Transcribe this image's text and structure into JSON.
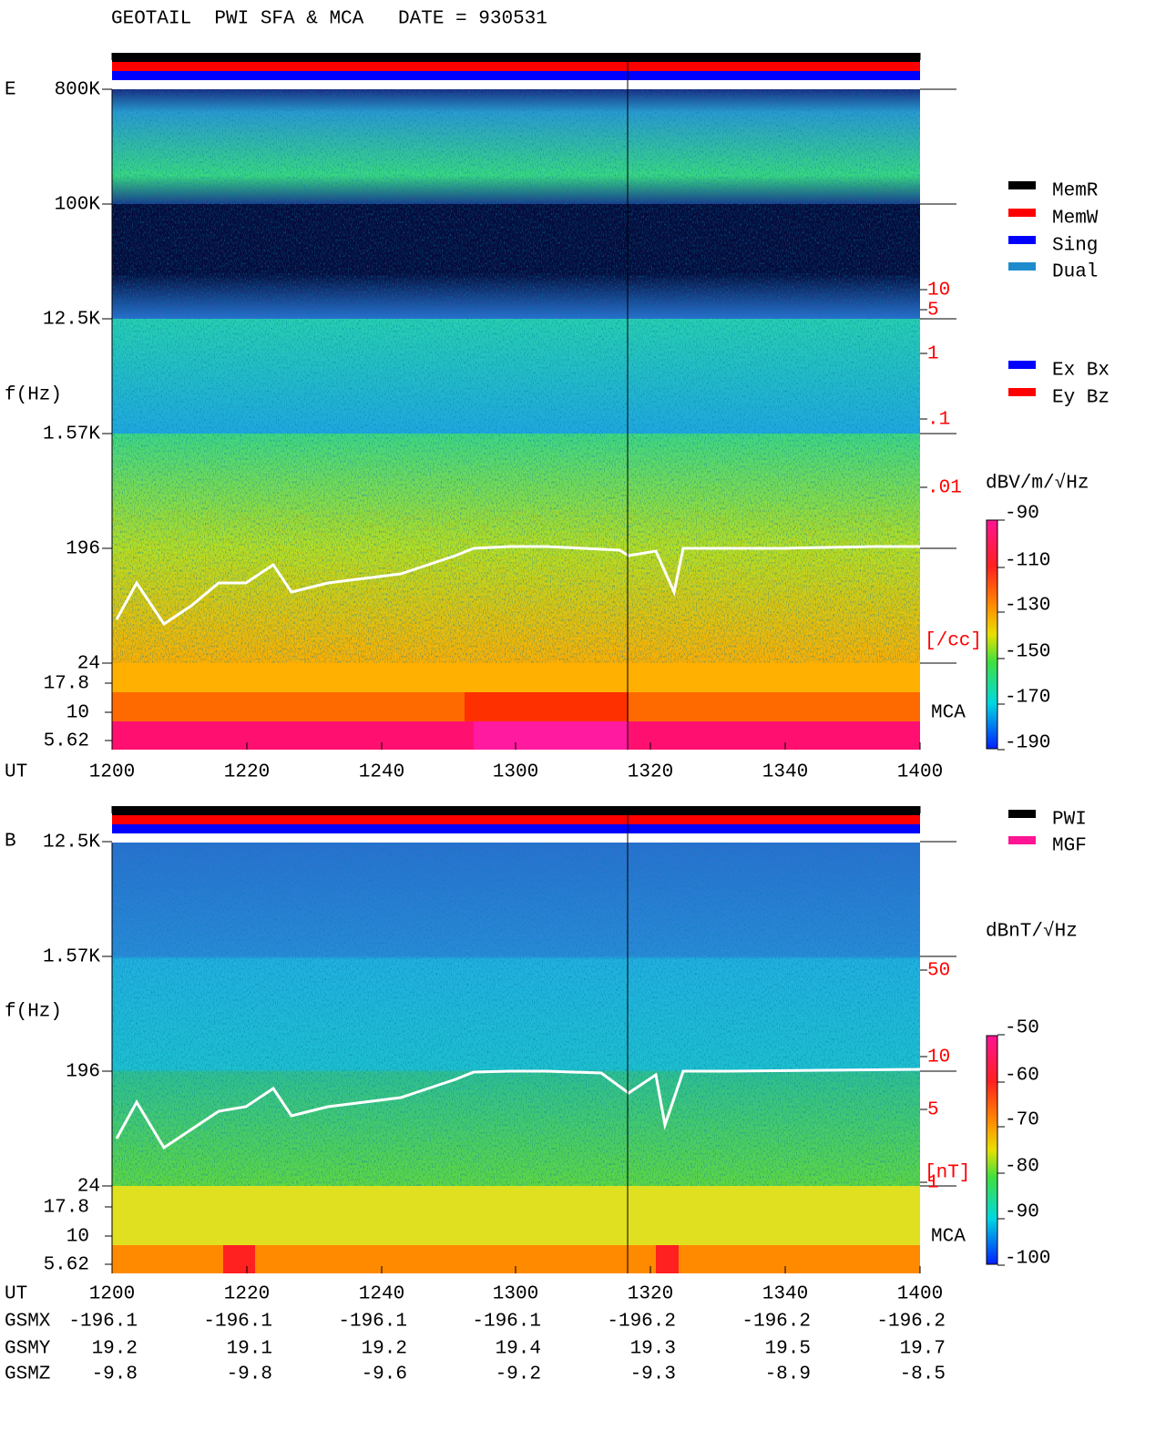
{
  "title": "GEOTAIL  PWI SFA & MCA   DATE = 930531",
  "panels": [
    {
      "label": "E",
      "axis_label": "f(Hz)",
      "freq_ticks": [
        "800K",
        "100K",
        "12.5K",
        "1.57K",
        "196",
        "24"
      ],
      "mca_ticks": [
        "17.8",
        "10",
        "5.62"
      ],
      "time_label": "UT",
      "time_ticks": [
        "1200",
        "1220",
        "1240",
        "1300",
        "1320",
        "1340",
        "1400"
      ],
      "right_scale": [
        "10",
        "5",
        "1",
        ".1",
        ".01"
      ],
      "right_unit": "[/cc]",
      "mca_label": "MCA",
      "legend": [
        {
          "label": "MemR",
          "color": "#000000",
          "text_color": "#000000"
        },
        {
          "label": "MemW",
          "color": "#ff0000",
          "text_color": "#ff0000"
        },
        {
          "label": "Sing",
          "color": "#0000ff",
          "text_color": "#0000ff"
        },
        {
          "label": "Dual",
          "color": "#1e8ccc",
          "text_color": "#1e8ccc"
        }
      ],
      "legend2": [
        {
          "label": "Ex Bx",
          "color": "#0000ff",
          "text_color": "#0000ff"
        },
        {
          "label": "Ey Bz",
          "color": "#ff0000",
          "text_color": "#ff0000"
        }
      ],
      "colorbar_unit": "dBV/m/√Hz",
      "colorbar_ticks": [
        "-90",
        "-110",
        "-130",
        "-150",
        "-170",
        "-190"
      ]
    },
    {
      "label": "B",
      "axis_label": "f(Hz)",
      "freq_ticks": [
        "12.5K",
        "1.57K",
        "196",
        "24"
      ],
      "mca_ticks": [
        "17.8",
        "10",
        "5.62"
      ],
      "time_label": "UT",
      "time_ticks": [
        "1200",
        "1220",
        "1240",
        "1300",
        "1320",
        "1340",
        "1400"
      ],
      "right_scale": [
        "50",
        "10",
        "5",
        "1"
      ],
      "right_unit": "[nT]",
      "mca_label": "MCA",
      "legend": [
        {
          "label": "PWI",
          "color": "#000000",
          "text_color": "#000000"
        },
        {
          "label": "MGF",
          "color": "#ff1493",
          "text_color": "#ff1493"
        }
      ],
      "legend2": [],
      "colorbar_unit": "dBnT/√Hz",
      "colorbar_ticks": [
        "-50",
        "-60",
        "-70",
        "-80",
        "-90",
        "-100"
      ]
    }
  ],
  "orbit": [
    {
      "label": "GSMX",
      "values": [
        "-196.1",
        "-196.1",
        "-196.1",
        "-196.1",
        "-196.2",
        "-196.2",
        "-196.2"
      ]
    },
    {
      "label": "GSMY",
      "values": [
        "19.2",
        "19.1",
        "19.2",
        "19.4",
        "19.3",
        "19.5",
        "19.7"
      ]
    },
    {
      "label": "GSMZ",
      "values": [
        "-9.8",
        "-9.8",
        "-9.6",
        "-9.2",
        "-9.3",
        "-8.9",
        "-8.5"
      ]
    }
  ]
}
